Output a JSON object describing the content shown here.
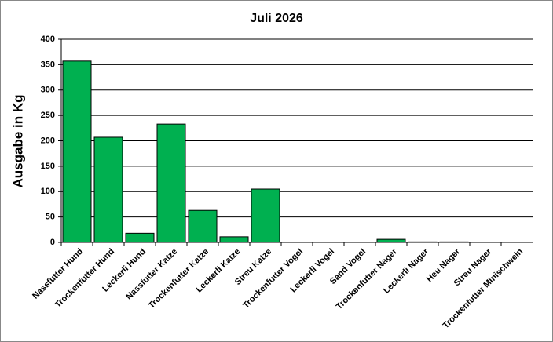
{
  "chart_data": {
    "type": "bar",
    "title": "Juli 2026",
    "y_label": "Ausgabe in Kg",
    "categories": [
      "Nassfutter Hund",
      "Trockenfutter Hund",
      "Leckerli Hund",
      "Nassfutter Katze",
      "Trockenfutter Katze",
      "Leckerli Katze",
      "Streu Katze",
      "Trockenfutter Vogel",
      "Leckerli Vogel",
      "Sand Vogel",
      "Trockenfutter Nager",
      "Leckerli Nager",
      "Heu Nager",
      "Streu Nager",
      "Trockenfutter Minischwein"
    ],
    "values": [
      357,
      207,
      18,
      233,
      63,
      11,
      105,
      0,
      0,
      0,
      6,
      1,
      1,
      0,
      0
    ],
    "color": "#00b050",
    "ylim": [
      0,
      400
    ],
    "yticks": [
      0,
      50,
      100,
      150,
      200,
      250,
      300,
      350,
      400
    ],
    "grid": true
  }
}
